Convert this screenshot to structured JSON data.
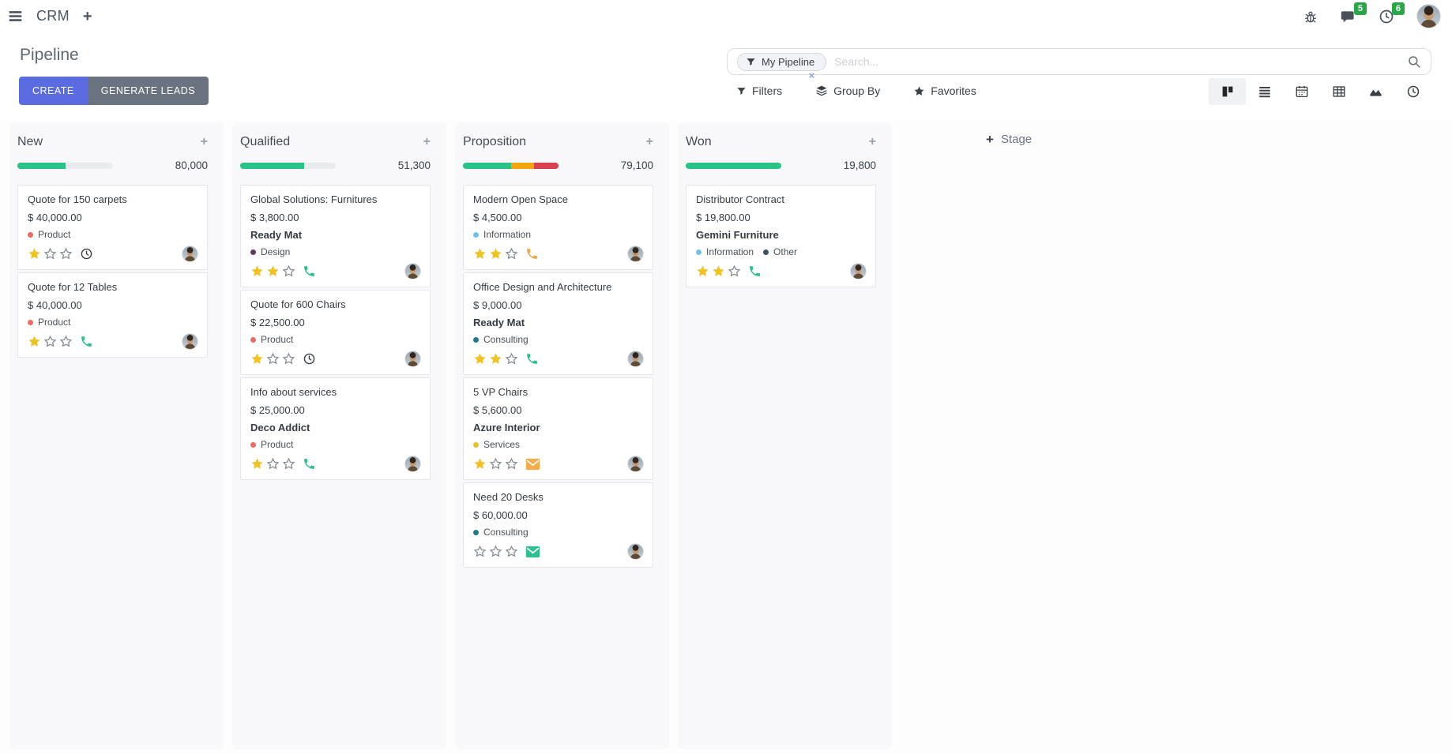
{
  "navbar": {
    "app_name": "CRM",
    "messages_badge": "5",
    "activities_badge": "6"
  },
  "control_panel": {
    "title": "Pipeline",
    "buttons": {
      "create": "CREATE",
      "generate_leads": "GENERATE LEADS"
    },
    "search": {
      "facet_label": "My Pipeline",
      "remove_facet": "×",
      "placeholder": "Search..."
    },
    "menus": {
      "filters": "Filters",
      "group_by": "Group By",
      "favorites": "Favorites"
    },
    "view_switcher": {
      "active": "kanban",
      "views": [
        "kanban",
        "list",
        "calendar",
        "pivot",
        "graph",
        "activity"
      ]
    }
  },
  "kanban": {
    "add_stage_plus": "+",
    "add_stage_label": "Stage",
    "add_card_label": "+",
    "columns": [
      {
        "name": "New",
        "total": "80,000",
        "progress": [
          {
            "color": "#29c287",
            "pct": 50
          }
        ],
        "cards": [
          {
            "title": "Quote for 150 carpets",
            "amount": "$ 40,000.00",
            "tags": [
              {
                "label": "Product",
                "color": "#ec6a5e"
              }
            ],
            "stars": 1,
            "activity": {
              "icon": "clock",
              "color": "#3a4046"
            }
          },
          {
            "title": "Quote for 12 Tables",
            "amount": "$ 40,000.00",
            "tags": [
              {
                "label": "Product",
                "color": "#ec6a5e"
              }
            ],
            "stars": 1,
            "activity": {
              "icon": "phone",
              "color": "#2dc08d"
            }
          }
        ]
      },
      {
        "name": "Qualified",
        "total": "51,300",
        "progress": [
          {
            "color": "#29c287",
            "pct": 67
          }
        ],
        "cards": [
          {
            "title": "Global Solutions: Furnitures",
            "amount": "$ 3,800.00",
            "partner": "Ready Mat",
            "tags": [
              {
                "label": "Design",
                "color": "#68355f"
              }
            ],
            "stars": 2,
            "activity": {
              "icon": "phone",
              "color": "#2dc08d"
            }
          },
          {
            "title": "Quote for 600 Chairs",
            "amount": "$ 22,500.00",
            "tags": [
              {
                "label": "Product",
                "color": "#ec6a5e"
              }
            ],
            "stars": 1,
            "activity": {
              "icon": "clock",
              "color": "#3a4046"
            }
          },
          {
            "title": "Info about services",
            "amount": "$ 25,000.00",
            "partner": "Deco Addict",
            "tags": [
              {
                "label": "Product",
                "color": "#ec6a5e"
              }
            ],
            "stars": 1,
            "activity": {
              "icon": "phone",
              "color": "#2dc08d"
            }
          }
        ]
      },
      {
        "name": "Proposition",
        "total": "79,100",
        "progress": [
          {
            "color": "#29c287",
            "pct": 50
          },
          {
            "color": "#f2a50c",
            "pct": 24
          },
          {
            "color": "#d9414e",
            "pct": 26
          }
        ],
        "cards": [
          {
            "title": "Modern Open Space",
            "amount": "$ 4,500.00",
            "tags": [
              {
                "label": "Information",
                "color": "#6ec1e8"
              }
            ],
            "stars": 2,
            "activity": {
              "icon": "phone",
              "color": "#f2a444"
            }
          },
          {
            "title": "Office Design and Architecture",
            "amount": "$ 9,000.00",
            "partner": "Ready Mat",
            "tags": [
              {
                "label": "Consulting",
                "color": "#1f7a8c"
              }
            ],
            "stars": 2,
            "activity": {
              "icon": "phone",
              "color": "#2dc08d"
            }
          },
          {
            "title": "5 VP Chairs",
            "amount": "$ 5,600.00",
            "partner": "Azure Interior",
            "tags": [
              {
                "label": "Services",
                "color": "#e8bf25"
              }
            ],
            "stars": 1,
            "activity": {
              "icon": "envelope",
              "color": "#f2ac49"
            }
          },
          {
            "title": "Need 20 Desks",
            "amount": "$ 60,000.00",
            "tags": [
              {
                "label": "Consulting",
                "color": "#1f7a8c"
              }
            ],
            "stars": 0,
            "activity": {
              "icon": "envelope",
              "color": "#2dc08d"
            }
          }
        ]
      },
      {
        "name": "Won",
        "total": "19,800",
        "progress": [
          {
            "color": "#29c287",
            "pct": 100
          }
        ],
        "cards": [
          {
            "title": "Distributor Contract",
            "amount": "$ 19,800.00",
            "partner": "Gemini Furniture",
            "tags": [
              {
                "label": "Information",
                "color": "#6ec1e8"
              },
              {
                "label": "Other",
                "color": "#3d4f66"
              }
            ],
            "stars": 2,
            "activity": {
              "icon": "phone",
              "color": "#2dc08d"
            }
          }
        ]
      }
    ]
  }
}
